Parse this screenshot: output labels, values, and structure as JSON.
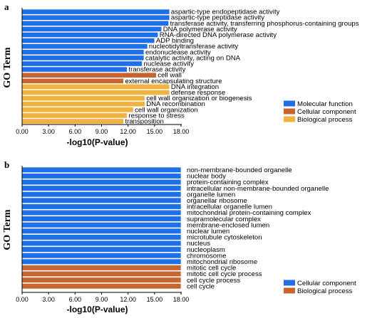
{
  "colors": {
    "molecular_function": "#1f6fe8",
    "cellular_component": "#c8642f",
    "biological_process": "#f0b23c"
  },
  "chart_data": [
    {
      "type": "bar",
      "orientation": "horizontal",
      "panel_label": "a",
      "xlabel": "-log10(P-value)",
      "ylabel": "GO Term",
      "xlim": [
        0,
        18
      ],
      "xticks": [
        "0.00",
        "3.00",
        "6.00",
        "9.00",
        "12.00",
        "15.00",
        "18.00"
      ],
      "grid": false,
      "legend_position": "bottom-right",
      "legend": [
        {
          "label": "Molecular function",
          "category": "molecular_function"
        },
        {
          "label": "Cellular component",
          "category": "cellular_component"
        },
        {
          "label": "Biological process",
          "category": "biological_process"
        }
      ],
      "bars": [
        {
          "label": "aspartic-type endopeptidase activity",
          "value": 16.7,
          "category": "molecular_function"
        },
        {
          "label": "aspartic-type peptidase activity",
          "value": 16.7,
          "category": "molecular_function"
        },
        {
          "label": "transferase activity, transferring phosphorus-containing groups",
          "value": 16.6,
          "category": "molecular_function"
        },
        {
          "label": "DNA polymerase activity",
          "value": 15.8,
          "category": "molecular_function"
        },
        {
          "label": "RNA-directed DNA polymerase activity",
          "value": 15.4,
          "category": "molecular_function"
        },
        {
          "label": "ADP binding",
          "value": 15.0,
          "category": "molecular_function"
        },
        {
          "label": "nucleotidyltransferase activity",
          "value": 14.2,
          "category": "molecular_function"
        },
        {
          "label": "endonuclease activity",
          "value": 13.8,
          "category": "molecular_function"
        },
        {
          "label": "catalytic activity, acting on DNA",
          "value": 13.8,
          "category": "molecular_function"
        },
        {
          "label": "nuclease activity",
          "value": 13.6,
          "category": "molecular_function"
        },
        {
          "label": "transferase activity",
          "value": 11.9,
          "category": "molecular_function"
        },
        {
          "label": "cell wall",
          "value": 15.2,
          "category": "cellular_component"
        },
        {
          "label": "external encapsulating structure",
          "value": 11.5,
          "category": "cellular_component"
        },
        {
          "label": "DNA integration",
          "value": 16.7,
          "category": "biological_process"
        },
        {
          "label": "defense response",
          "value": 16.7,
          "category": "biological_process"
        },
        {
          "label": "cell wall organization or biogenesis",
          "value": 13.9,
          "category": "biological_process"
        },
        {
          "label": "DNA recombination",
          "value": 13.9,
          "category": "biological_process"
        },
        {
          "label": "cell wall organization",
          "value": 12.6,
          "category": "biological_process"
        },
        {
          "label": "response to stress",
          "value": 11.9,
          "category": "biological_process"
        },
        {
          "label": "transposition",
          "value": 11.5,
          "category": "biological_process"
        }
      ]
    },
    {
      "type": "bar",
      "orientation": "horizontal",
      "panel_label": "b",
      "xlabel": "-log10(P-value)",
      "ylabel": "GO Term",
      "xlim": [
        0,
        18
      ],
      "xticks": [
        "0.00",
        "3.00",
        "6.00",
        "9.00",
        "12.00",
        "15.00",
        "18.00"
      ],
      "grid": false,
      "legend_position": "bottom-right",
      "legend": [
        {
          "label": "Cellular component",
          "category": "molecular_function"
        },
        {
          "label": "Biological process",
          "category": "cellular_component"
        }
      ],
      "bars": [
        {
          "label": "non-membrane-bounded organelle",
          "value": 18.0,
          "category": "molecular_function"
        },
        {
          "label": "nuclear body",
          "value": 18.0,
          "category": "molecular_function"
        },
        {
          "label": "protein-containing complex",
          "value": 18.0,
          "category": "molecular_function"
        },
        {
          "label": "intracellular non-membrane-bounded organelle",
          "value": 18.0,
          "category": "molecular_function"
        },
        {
          "label": "organelle lumen",
          "value": 18.0,
          "category": "molecular_function"
        },
        {
          "label": "organellar ribosome",
          "value": 18.0,
          "category": "molecular_function"
        },
        {
          "label": "intracellular organelle lumen",
          "value": 18.0,
          "category": "molecular_function"
        },
        {
          "label": "mitochondrial protein-containing complex",
          "value": 18.0,
          "category": "molecular_function"
        },
        {
          "label": "supramolecular complex",
          "value": 18.0,
          "category": "molecular_function"
        },
        {
          "label": "membrane-enclosed lumen",
          "value": 18.0,
          "category": "molecular_function"
        },
        {
          "label": "nuclear lumen",
          "value": 18.0,
          "category": "molecular_function"
        },
        {
          "label": "microtubule cytoskeleton",
          "value": 18.0,
          "category": "molecular_function"
        },
        {
          "label": "nucleus",
          "value": 18.0,
          "category": "molecular_function"
        },
        {
          "label": "nucleoplasm",
          "value": 18.0,
          "category": "molecular_function"
        },
        {
          "label": "chromosome",
          "value": 18.0,
          "category": "molecular_function"
        },
        {
          "label": "mitochondrial ribosome",
          "value": 18.0,
          "category": "molecular_function"
        },
        {
          "label": "mitotic cell cycle",
          "value": 18.0,
          "category": "cellular_component"
        },
        {
          "label": "mitotic cell cycle process",
          "value": 18.0,
          "category": "cellular_component"
        },
        {
          "label": "cell cycle process",
          "value": 18.0,
          "category": "cellular_component"
        },
        {
          "label": "cell cycle",
          "value": 18.0,
          "category": "cellular_component"
        }
      ]
    }
  ]
}
